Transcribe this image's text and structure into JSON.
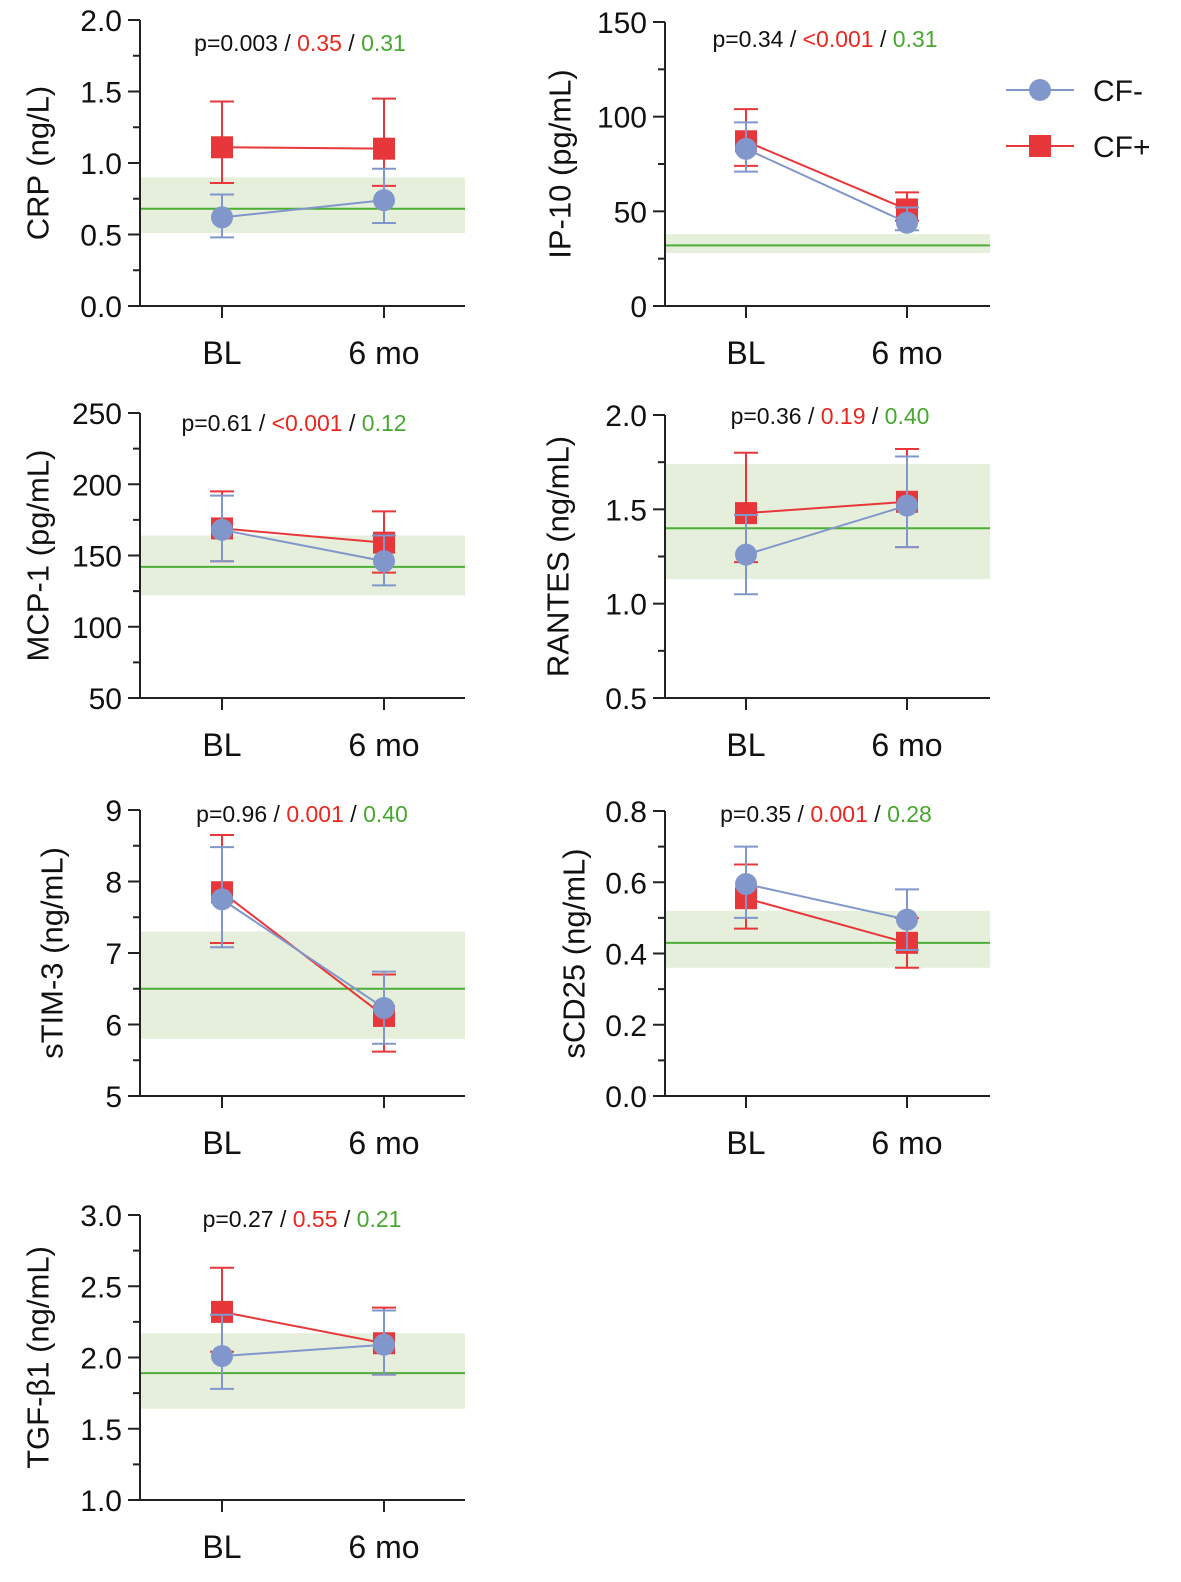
{
  "colors": {
    "cf_neg": "#8197cc",
    "cf_pos": "#e8373a",
    "reference_line": "#4caf35",
    "reference_band": "#e5efdb",
    "p_overall": "#111111",
    "p_cf_pos": "#e8271f",
    "p_cf_neg": "#46a82f"
  },
  "legend": {
    "items": [
      {
        "name": "CF-",
        "marker": "circle",
        "color": "#8197cc"
      },
      {
        "name": "CF+",
        "marker": "square",
        "color": "#e8373a"
      }
    ]
  },
  "chart_data": [
    {
      "type": "line",
      "title": "CRP",
      "ylabel": "CRP (ng/L)",
      "categories": [
        "BL",
        "6 mo"
      ],
      "ylim": [
        0,
        2
      ],
      "yticks": [
        0,
        0.5,
        1,
        1.5,
        2
      ],
      "ytick_labels": [
        "0.0",
        "0.5",
        "1.0",
        "1.5",
        "2.0"
      ],
      "p_values": {
        "overall": "p=0.003",
        "cf_pos": "0.35",
        "cf_neg": "0.31",
        "sep": " / "
      },
      "reference": {
        "mean": 0.68,
        "low": 0.51,
        "high": 0.9
      },
      "series": [
        {
          "name": "CF-",
          "values": [
            0.62,
            0.74
          ],
          "err_low": [
            0.48,
            0.58
          ],
          "err_high": [
            0.78,
            0.96
          ]
        },
        {
          "name": "CF+",
          "values": [
            1.11,
            1.1
          ],
          "err_low": [
            0.86,
            0.84
          ],
          "err_high": [
            1.43,
            1.45
          ]
        }
      ]
    },
    {
      "type": "line",
      "title": "IP-10",
      "ylabel": "IP-10 (pg/mL)",
      "categories": [
        "BL",
        "6 mo"
      ],
      "ylim": [
        0,
        150
      ],
      "yticks": [
        0,
        50,
        100,
        150
      ],
      "ytick_labels": [
        "0",
        "50",
        "100",
        "150"
      ],
      "p_values": {
        "overall": "p=0.34",
        "cf_pos": "<0.001",
        "cf_neg": "0.31",
        "sep": " / "
      },
      "reference": {
        "mean": 32,
        "low": 28,
        "high": 38
      },
      "series": [
        {
          "name": "CF-",
          "values": [
            83,
            44
          ],
          "err_low": [
            71,
            40
          ],
          "err_high": [
            97,
            52
          ]
        },
        {
          "name": "CF+",
          "values": [
            87,
            51
          ],
          "err_low": [
            74,
            45
          ],
          "err_high": [
            104,
            60
          ]
        }
      ]
    },
    {
      "type": "line",
      "title": "MCP-1",
      "ylabel": "MCP-1 (pg/mL)",
      "categories": [
        "BL",
        "6 mo"
      ],
      "ylim": [
        50,
        250
      ],
      "yticks": [
        50,
        100,
        150,
        200,
        250
      ],
      "ytick_labels": [
        "50",
        "100",
        "150",
        "200",
        "250"
      ],
      "p_values": {
        "overall": "p=0.61",
        "cf_pos": "<0.001",
        "cf_neg": "0.12",
        "sep": " / "
      },
      "reference": {
        "mean": 142,
        "low": 122,
        "high": 164
      },
      "series": [
        {
          "name": "CF-",
          "values": [
            168,
            146
          ],
          "err_low": [
            146,
            129
          ],
          "err_high": [
            192,
            164
          ]
        },
        {
          "name": "CF+",
          "values": [
            169,
            159
          ],
          "err_low": [
            146,
            138
          ],
          "err_high": [
            195,
            181
          ]
        }
      ]
    },
    {
      "type": "line",
      "title": "RANTES",
      "ylabel": "RANTES (ng/mL)",
      "categories": [
        "BL",
        "6 mo"
      ],
      "ylim": [
        0.5,
        2
      ],
      "yticks": [
        0.5,
        1,
        1.5,
        2
      ],
      "ytick_labels": [
        "0.5",
        "1.0",
        "1.5",
        "2.0"
      ],
      "p_values": {
        "overall": "p=0.36",
        "cf_pos": "0.19",
        "cf_neg": "0.40",
        "sep": " / "
      },
      "reference": {
        "mean": 1.4,
        "low": 1.13,
        "high": 1.74
      },
      "series": [
        {
          "name": "CF-",
          "values": [
            1.26,
            1.52
          ],
          "err_low": [
            1.05,
            1.3
          ],
          "err_high": [
            1.47,
            1.78
          ]
        },
        {
          "name": "CF+",
          "values": [
            1.48,
            1.54
          ],
          "err_low": [
            1.22,
            1.3
          ],
          "err_high": [
            1.8,
            1.82
          ]
        }
      ]
    },
    {
      "type": "line",
      "title": "sTIM-3",
      "ylabel": "sTIM-3 (ng/mL)",
      "categories": [
        "BL",
        "6 mo"
      ],
      "ylim": [
        5,
        9
      ],
      "yticks": [
        5,
        6,
        7,
        8,
        9
      ],
      "ytick_labels": [
        "5",
        "6",
        "7",
        "8",
        "9"
      ],
      "p_values": {
        "overall": "p=0.96",
        "cf_pos": "0.001",
        "cf_neg": "0.40",
        "sep": " / "
      },
      "reference": {
        "mean": 6.5,
        "low": 5.8,
        "high": 7.3
      },
      "series": [
        {
          "name": "CF-",
          "values": [
            7.75,
            6.23
          ],
          "err_low": [
            7.08,
            5.73
          ],
          "err_high": [
            8.48,
            6.74
          ]
        },
        {
          "name": "CF+",
          "values": [
            7.85,
            6.12
          ],
          "err_low": [
            7.14,
            5.62
          ],
          "err_high": [
            8.65,
            6.7
          ]
        }
      ]
    },
    {
      "type": "line",
      "title": "sCD25",
      "ylabel": "sCD25 (ng/mL)",
      "categories": [
        "BL",
        "6 mo"
      ],
      "ylim": [
        0,
        0.8
      ],
      "yticks": [
        0,
        0.2,
        0.4,
        0.6,
        0.8
      ],
      "ytick_labels": [
        "0.0",
        "0.2",
        "0.4",
        "0.6",
        "0.8"
      ],
      "p_values": {
        "overall": "p=0.35",
        "cf_pos": "0.001",
        "cf_neg": "0.28",
        "sep": " / "
      },
      "reference": {
        "mean": 0.43,
        "low": 0.36,
        "high": 0.52
      },
      "series": [
        {
          "name": "CF-",
          "values": [
            0.595,
            0.495
          ],
          "err_low": [
            0.5,
            0.41
          ],
          "err_high": [
            0.7,
            0.58
          ]
        },
        {
          "name": "CF+",
          "values": [
            0.555,
            0.43
          ],
          "err_low": [
            0.47,
            0.36
          ],
          "err_high": [
            0.65,
            0.5
          ]
        }
      ]
    },
    {
      "type": "line",
      "title": "TGF-β1",
      "ylabel": "TGF-β1 (ng/mL)",
      "categories": [
        "BL",
        "6 mo"
      ],
      "ylim": [
        1,
        3
      ],
      "yticks": [
        1,
        1.5,
        2,
        2.5,
        3
      ],
      "ytick_labels": [
        "1.0",
        "1.5",
        "2.0",
        "2.5",
        "3.0"
      ],
      "p_values": {
        "overall": "p=0.27",
        "cf_pos": "0.55",
        "cf_neg": "0.21",
        "sep": " / "
      },
      "reference": {
        "mean": 1.89,
        "low": 1.64,
        "high": 2.17
      },
      "series": [
        {
          "name": "CF-",
          "values": [
            2.01,
            2.09
          ],
          "err_low": [
            1.78,
            1.88
          ],
          "err_high": [
            2.3,
            2.33
          ]
        },
        {
          "name": "CF+",
          "values": [
            2.32,
            2.1
          ],
          "err_low": [
            2.04,
            1.88
          ],
          "err_high": [
            2.63,
            2.35
          ]
        }
      ]
    }
  ]
}
